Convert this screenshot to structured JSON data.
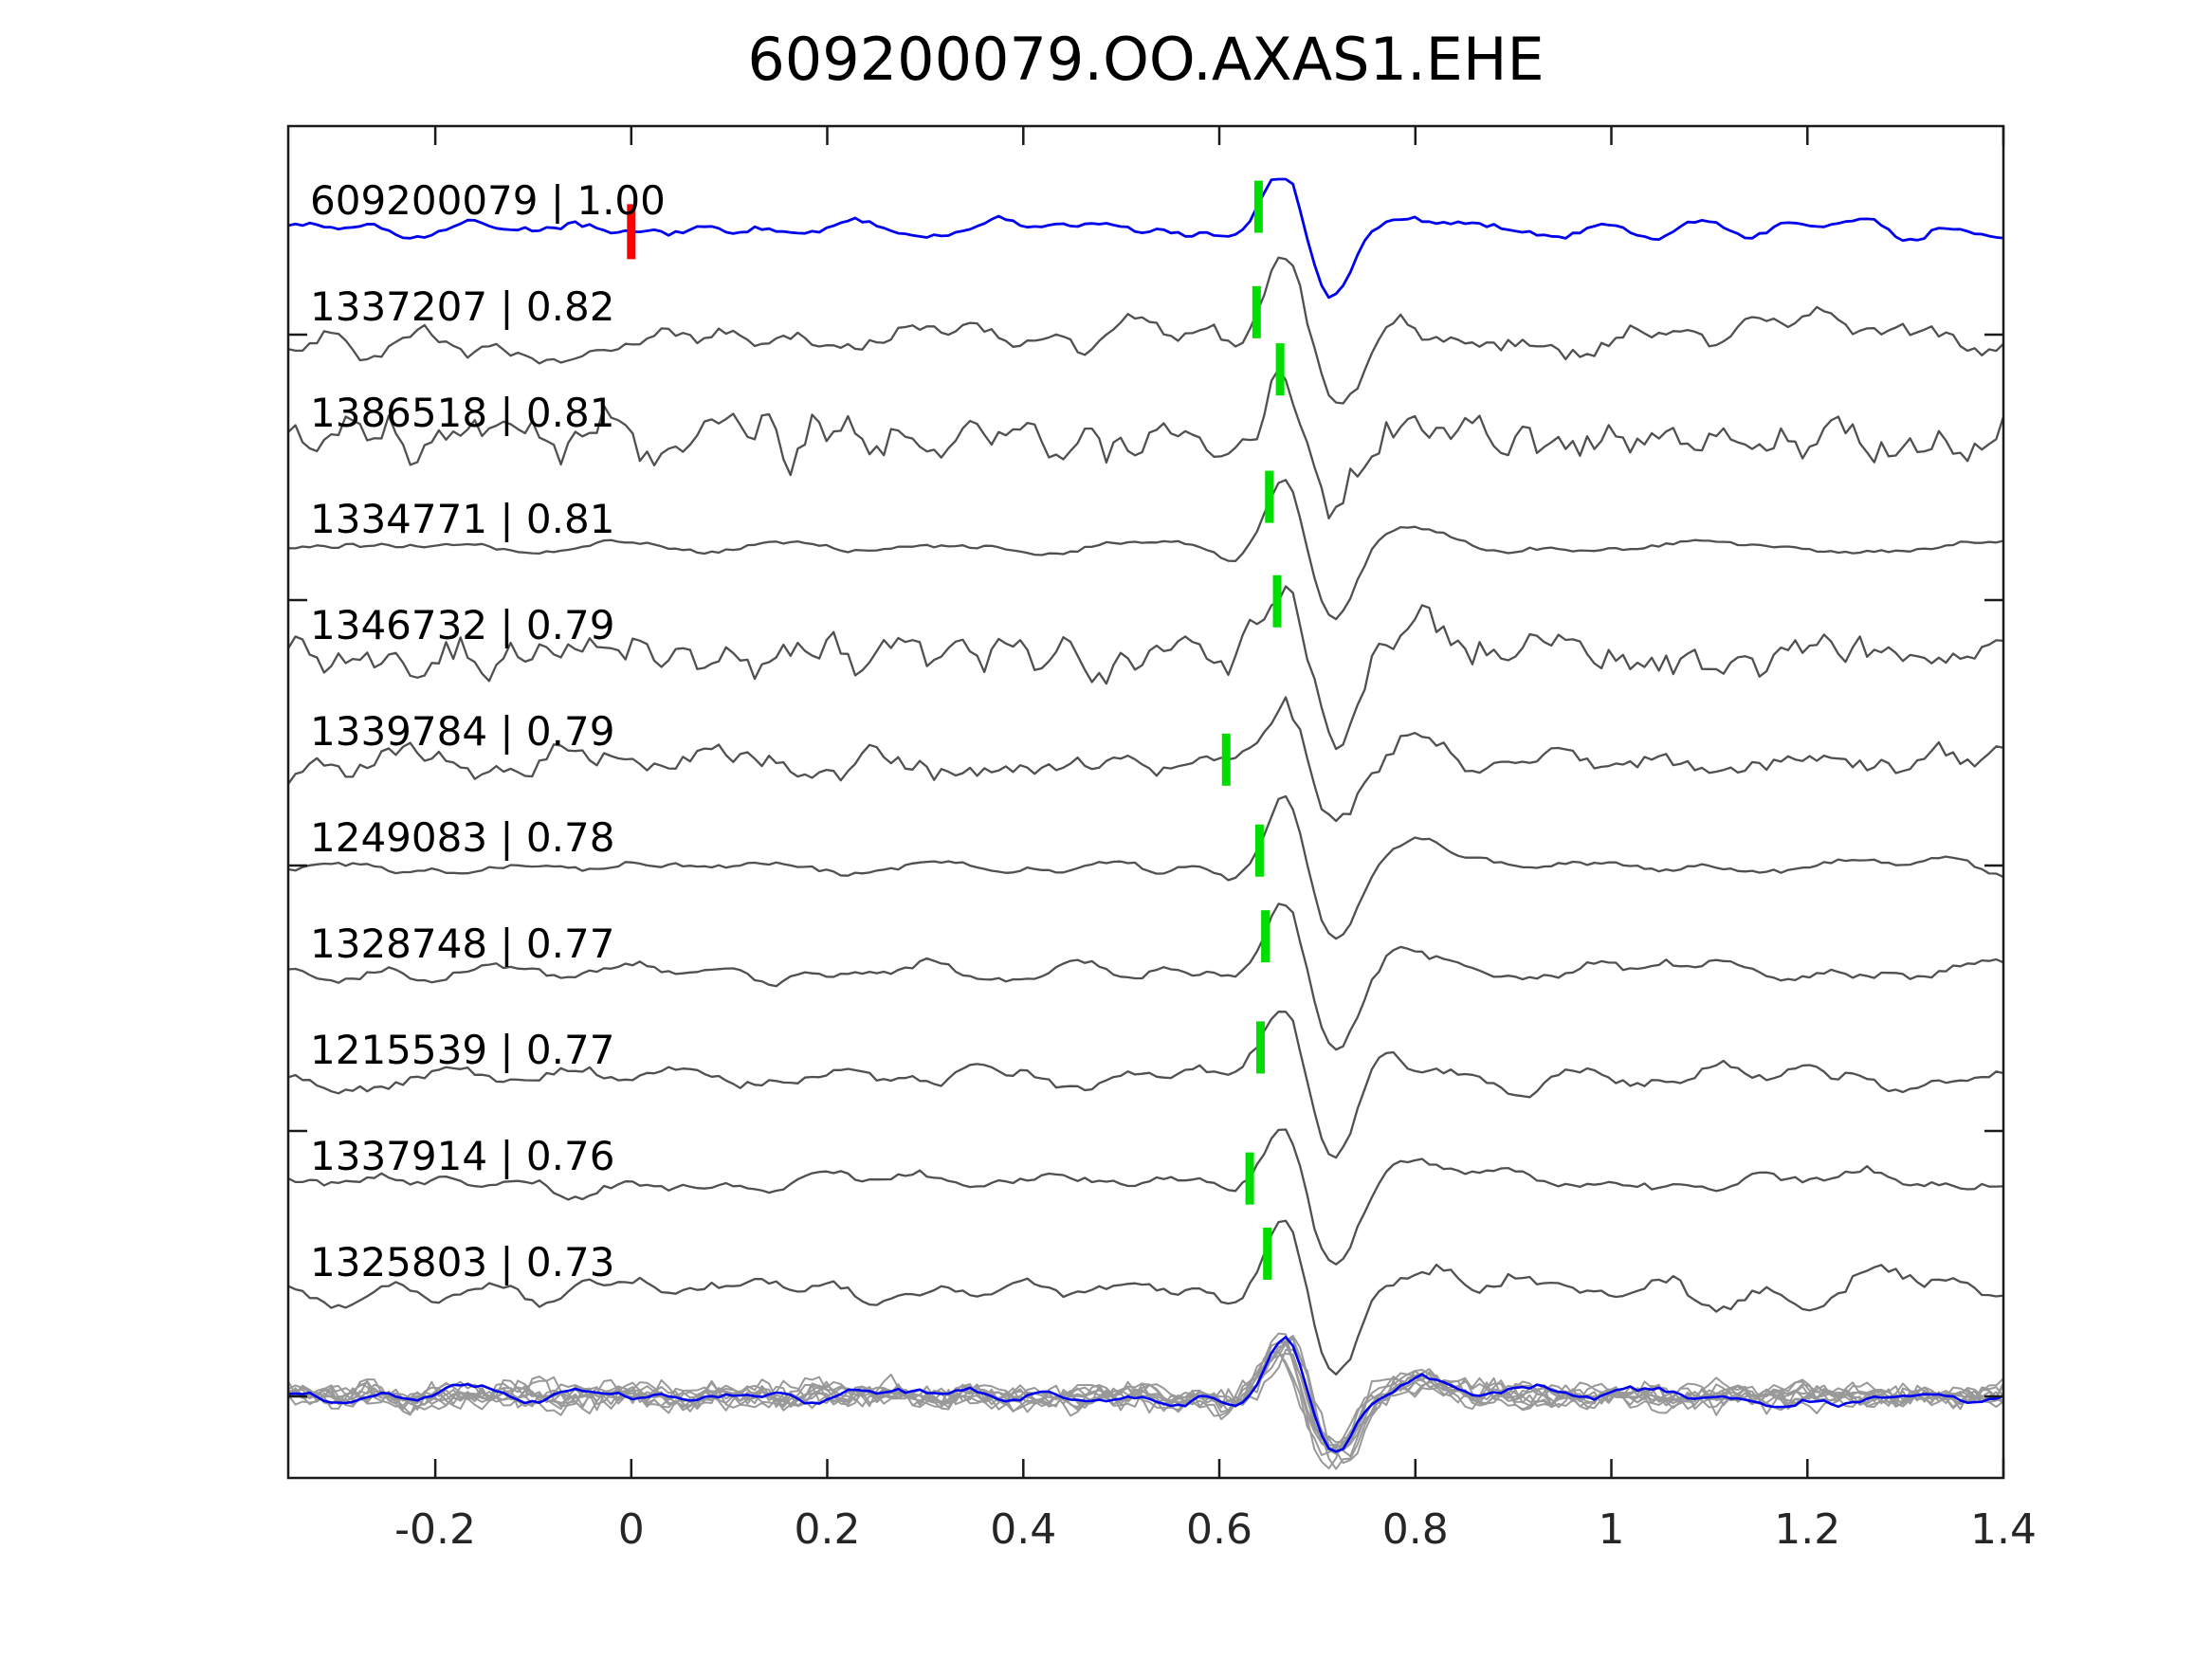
{
  "title": "609200079.OO.AXAS1.EHE",
  "colors": {
    "background": "#ffffff",
    "template_trace": "#0000ee",
    "match_trace": "#505050",
    "stack_trace": "#999999",
    "pick_marker": "#00dd00",
    "origin_marker": "#ff0000",
    "axis": "#1a1a1a",
    "text": "#000000"
  },
  "chart_data": {
    "type": "line",
    "title": "609200079.OO.AXAS1.EHE",
    "description": "Waveform template-matching plot: template event trace (blue) and ten matched detection traces (gray) with cross-correlation coefficients, green phase-pick markers, red origin marker on template, and an overlay stack of all traces at the bottom.",
    "x_axis": {
      "range": [
        -0.35,
        1.4
      ],
      "tick_values": [
        -0.2,
        0,
        0.2,
        0.4,
        0.6,
        0.8,
        1,
        1.2,
        1.4
      ],
      "ticks": [
        "-0.2",
        "0",
        "0.2",
        "0.4",
        "0.6",
        "0.8",
        "1",
        "1.2",
        "1.4"
      ]
    },
    "y_axis": {
      "tick_labels_shown": false
    },
    "traces": [
      {
        "id": "609200079",
        "cc": 1.0,
        "label": "609200079 | 1.00",
        "role": "template",
        "pick_x": 0.64,
        "origin_x": 0.0
      },
      {
        "id": "1337207",
        "cc": 0.82,
        "label": "1337207 | 0.82",
        "role": "match",
        "pick_x": 0.638
      },
      {
        "id": "1386518",
        "cc": 0.81,
        "label": "1386518 | 0.81",
        "role": "match",
        "pick_x": 0.662
      },
      {
        "id": "1334771",
        "cc": 0.81,
        "label": "1334771 | 0.81",
        "role": "match",
        "pick_x": 0.651
      },
      {
        "id": "1346732",
        "cc": 0.79,
        "label": "1346732 | 0.79",
        "role": "match",
        "pick_x": 0.659
      },
      {
        "id": "1339784",
        "cc": 0.79,
        "label": "1339784 | 0.79",
        "role": "match",
        "pick_x": 0.607
      },
      {
        "id": "1249083",
        "cc": 0.78,
        "label": "1249083 | 0.78",
        "role": "match",
        "pick_x": 0.641
      },
      {
        "id": "1328748",
        "cc": 0.77,
        "label": "1328748 | 0.77",
        "role": "match",
        "pick_x": 0.647
      },
      {
        "id": "1215539",
        "cc": 0.77,
        "label": "1215539 | 0.77",
        "role": "match",
        "pick_x": 0.642
      },
      {
        "id": "1337914",
        "cc": 0.76,
        "label": "1337914 | 0.76",
        "role": "match",
        "pick_x": 0.631
      },
      {
        "id": "1325803",
        "cc": 0.73,
        "label": "1325803 | 0.73",
        "role": "match",
        "pick_x": 0.649
      }
    ],
    "stack": {
      "overlay_count": 10,
      "template_overlaid": true,
      "event_peak_x": 0.665
    }
  },
  "render": {
    "samples": 240,
    "event": {
      "peak_x": 0.668,
      "peak_amp": 74,
      "trough_x": 0.717,
      "trough_amp": 78,
      "rebound_x": 0.8,
      "rebound_amp": 20,
      "predip_x": 0.612,
      "predip_amp": 12
    },
    "traces": [
      {
        "seed": 11,
        "amp": 13,
        "win": 2,
        "passes": 2,
        "jag": 2,
        "ev": 1.0,
        "clip": 52
      },
      {
        "seed": 22,
        "amp": 27,
        "win": 2,
        "passes": 2,
        "jag": 5,
        "ev": 1.1,
        "coda": 1.1
      },
      {
        "seed": 33,
        "amp": 33,
        "win": 1,
        "passes": 1,
        "jag": 8,
        "ev": 1.0,
        "coda": 1.15
      },
      {
        "seed": 44,
        "amp": 8,
        "win": 3,
        "passes": 2,
        "jag": 1.5,
        "ev": 1.05
      },
      {
        "seed": 55,
        "amp": 29,
        "win": 1,
        "passes": 1,
        "jag": 7,
        "ev": 1.05
      },
      {
        "seed": 66,
        "amp": 24,
        "win": 2,
        "passes": 1,
        "jag": 5,
        "ev": 1.0
      },
      {
        "seed": 77,
        "amp": 12,
        "win": 2,
        "passes": 2,
        "jag": 2,
        "ev": 1.05
      },
      {
        "seed": 88,
        "amp": 14,
        "win": 2,
        "passes": 2,
        "jag": 3,
        "ev": 1.1
      },
      {
        "seed": 99,
        "amp": 19,
        "win": 2,
        "passes": 2,
        "jag": 3.5,
        "ev": 1.05
      },
      {
        "seed": 110,
        "amp": 16,
        "win": 2,
        "passes": 2,
        "jag": 3,
        "ev": 1.0
      },
      {
        "seed": 121,
        "amp": 18,
        "win": 2,
        "passes": 2,
        "jag": 3.5,
        "ev": 1.05,
        "coda": 1.4
      }
    ],
    "stack": {
      "count": 10,
      "seed_base": 2000,
      "seed_step": 37,
      "gray": {
        "amp": 15,
        "win": 1,
        "passes": 1,
        "jag": 6,
        "ev": 0.85
      },
      "blue": {
        "seed": 500,
        "amp": 12,
        "win": 2,
        "passes": 2,
        "jag": 2,
        "ev": 0.88
      }
    }
  }
}
